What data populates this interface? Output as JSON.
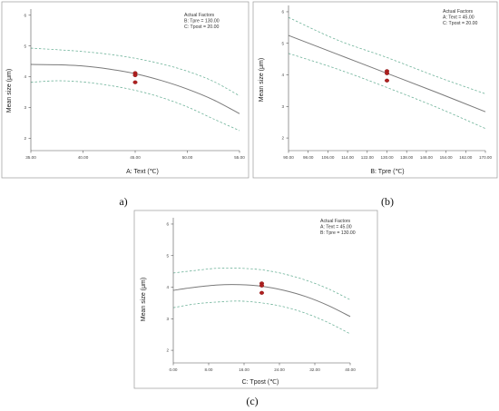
{
  "chart_data": [
    {
      "type": "line",
      "panel_label": "a)",
      "xlabel": "A: Text (℃)",
      "ylabel": "Mean size (μm)",
      "xlim": [
        35,
        55
      ],
      "ylim": [
        1.6,
        6.2
      ],
      "xticks": [
        35,
        40,
        45,
        50,
        55
      ],
      "xtick_labels": [
        "35.00",
        "40.00",
        "45.00",
        "50.00",
        "55.00"
      ],
      "yticks": [
        2,
        3,
        4,
        5,
        6
      ],
      "ytick_labels": [
        "2",
        "3",
        "4",
        "5",
        "6"
      ],
      "legend": [
        "Actual Factors",
        "B: Tpre = 130.00",
        "C: Tpost = 20.00"
      ],
      "series": [
        {
          "role": "fit",
          "x": [
            35,
            37.5,
            40,
            42.5,
            45,
            47.5,
            50,
            52.5,
            55
          ],
          "y": [
            4.4,
            4.39,
            4.35,
            4.25,
            4.1,
            3.88,
            3.6,
            3.25,
            2.8
          ]
        },
        {
          "role": "ci-upper",
          "x": [
            35,
            37.5,
            40,
            42.5,
            45,
            47.5,
            50,
            52.5,
            55
          ],
          "y": [
            4.93,
            4.88,
            4.82,
            4.73,
            4.6,
            4.42,
            4.18,
            3.85,
            3.38
          ]
        },
        {
          "role": "ci-lower",
          "x": [
            35,
            37.5,
            40,
            42.5,
            45,
            47.5,
            50,
            52.5,
            55
          ],
          "y": [
            3.82,
            3.87,
            3.83,
            3.72,
            3.56,
            3.33,
            3.02,
            2.63,
            2.25
          ]
        }
      ],
      "design_points": [
        {
          "x": 45,
          "y": 4.12
        },
        {
          "x": 45,
          "y": 4.05
        },
        {
          "x": 45,
          "y": 3.82
        }
      ]
    },
    {
      "type": "line",
      "panel_label": "(b)",
      "xlabel": "B: Tpre (℃)",
      "ylabel": "Mean size (μm)",
      "xlim": [
        90,
        170
      ],
      "ylim": [
        1.6,
        6.2
      ],
      "xticks": [
        90,
        98,
        106,
        114,
        122,
        130,
        138,
        146,
        154,
        162,
        170
      ],
      "xtick_labels": [
        "90.00",
        "98.00",
        "106.00",
        "114.00",
        "122.00",
        "130.00",
        "138.00",
        "146.00",
        "154.00",
        "162.00",
        "170.00"
      ],
      "yticks": [
        2,
        3,
        4,
        5,
        6
      ],
      "ytick_labels": [
        "2",
        "3",
        "4",
        "5",
        "6"
      ],
      "legend": [
        "Actual Factors",
        "A: Text = 45.00",
        "C: Tpost = 20.00"
      ],
      "series": [
        {
          "role": "fit",
          "x": [
            90,
            110,
            130,
            150,
            170
          ],
          "y": [
            5.25,
            4.65,
            4.05,
            3.45,
            2.83
          ]
        },
        {
          "role": "ci-upper",
          "x": [
            90,
            110,
            130,
            150,
            170
          ],
          "y": [
            5.82,
            5.1,
            4.55,
            3.95,
            3.4
          ]
        },
        {
          "role": "ci-lower",
          "x": [
            90,
            110,
            130,
            150,
            170
          ],
          "y": [
            4.68,
            4.18,
            3.6,
            2.98,
            2.3
          ]
        }
      ],
      "design_points": [
        {
          "x": 130,
          "y": 4.12
        },
        {
          "x": 130,
          "y": 4.05
        },
        {
          "x": 130,
          "y": 3.82
        }
      ]
    },
    {
      "type": "line",
      "panel_label": "(c)",
      "xlabel": "C: Tpost (℃)",
      "ylabel": "Mean size (μm)",
      "xlim": [
        0,
        40
      ],
      "ylim": [
        1.6,
        6.2
      ],
      "xticks": [
        0,
        8,
        16,
        24,
        32,
        40
      ],
      "xtick_labels": [
        "0.00",
        "8.00",
        "16.00",
        "24.00",
        "32.00",
        "40.00"
      ],
      "yticks": [
        2,
        3,
        4,
        5,
        6
      ],
      "ytick_labels": [
        "2",
        "3",
        "4",
        "5",
        "6"
      ],
      "legend": [
        "Actual Factors",
        "A: Text = 45.00",
        "B: Tpre = 130.00"
      ],
      "series": [
        {
          "role": "fit",
          "x": [
            0,
            5,
            10,
            15,
            20,
            25,
            30,
            35,
            40
          ],
          "y": [
            3.9,
            4.0,
            4.07,
            4.08,
            4.03,
            3.9,
            3.7,
            3.42,
            3.07
          ]
        },
        {
          "role": "ci-upper",
          "x": [
            0,
            5,
            10,
            15,
            20,
            25,
            30,
            35,
            40
          ],
          "y": [
            4.45,
            4.53,
            4.6,
            4.6,
            4.55,
            4.42,
            4.22,
            3.95,
            3.6
          ]
        },
        {
          "role": "ci-lower",
          "x": [
            0,
            5,
            10,
            15,
            20,
            25,
            30,
            35,
            40
          ],
          "y": [
            3.35,
            3.47,
            3.53,
            3.56,
            3.5,
            3.38,
            3.17,
            2.88,
            2.52
          ]
        }
      ],
      "design_points": [
        {
          "x": 20,
          "y": 4.12
        },
        {
          "x": 20,
          "y": 4.05
        },
        {
          "x": 20,
          "y": 3.82
        }
      ]
    }
  ]
}
